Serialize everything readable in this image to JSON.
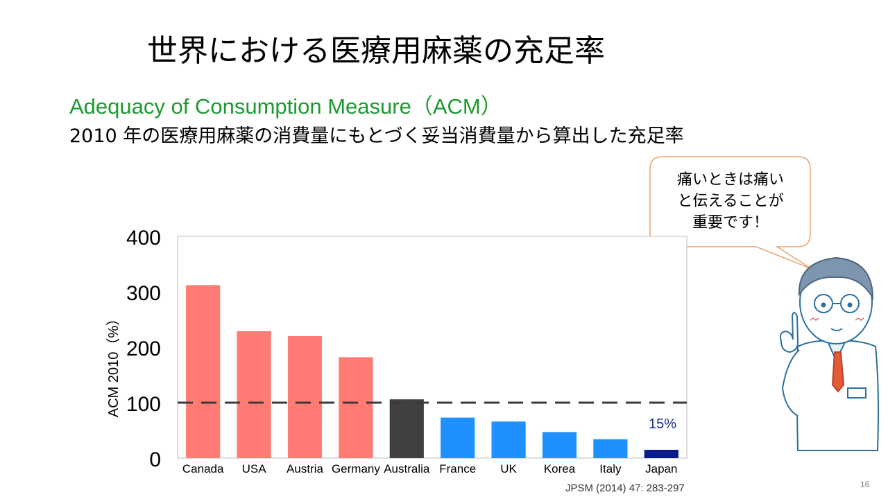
{
  "slide": {
    "title": "世界における医療用麻薬の充足率",
    "subtitle_en": "Adequacy of Consumption Measure（ACM）",
    "subtitle_ja": "2010 年の医療用麻薬の消費量にもとづく妥当消費量から算出した充足率",
    "citation": "JPSM (2014) 47: 283-297",
    "page_number": "16"
  },
  "bubble": {
    "lines": [
      "痛いときは痛い",
      "と伝えることが",
      "重要です！"
    ]
  },
  "chart_data": {
    "type": "bar",
    "categories": [
      "Canada",
      "USA",
      "Austria",
      "Germany",
      "Australia",
      "France",
      "UK",
      "Korea",
      "Italy",
      "Japan"
    ],
    "values": [
      312,
      229,
      220,
      182,
      106,
      73,
      66,
      47,
      34,
      15
    ],
    "colors": [
      "#ff7b73",
      "#ff7b73",
      "#ff7b73",
      "#ff7b73",
      "#404040",
      "#1e90ff",
      "#1e90ff",
      "#1e90ff",
      "#1e90ff",
      "#0a1b8c"
    ],
    "ylabel": "ACM 2010（%）",
    "ylim": [
      0,
      400
    ],
    "yticks": [
      0,
      100,
      200,
      300,
      400
    ],
    "reference_line": 100,
    "annotation": "15%",
    "grid": false
  }
}
